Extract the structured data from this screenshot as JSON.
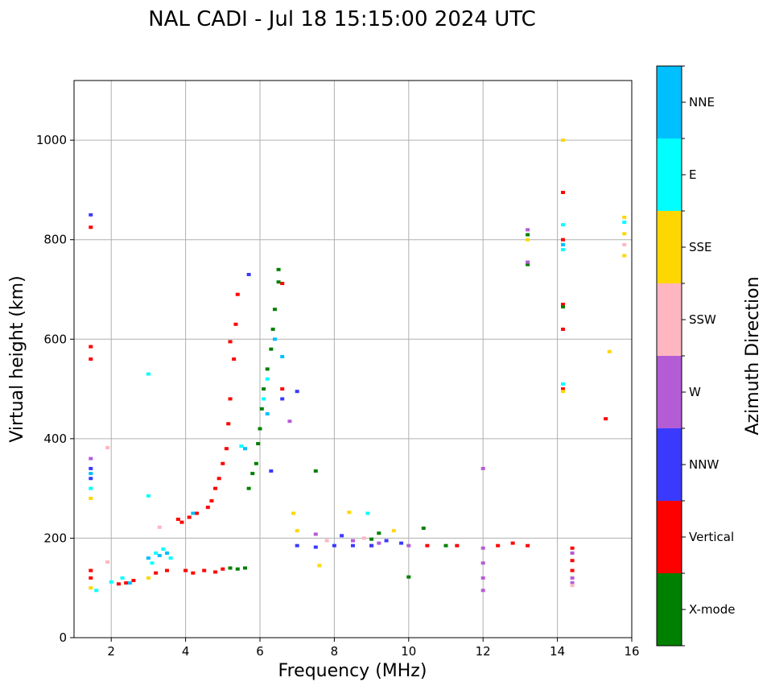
{
  "chart_data": {
    "type": "scatter",
    "title": "NAL CADI - Jul 18 15:15:00 2024 UTC",
    "xlabel": "Frequency (MHz)",
    "ylabel": "Virtual height (km)",
    "xlim": [
      1,
      16
    ],
    "ylim": [
      0,
      1120
    ],
    "xticks": [
      2,
      4,
      6,
      8,
      10,
      12,
      14,
      16
    ],
    "yticks": [
      0,
      200,
      400,
      600,
      800,
      1000
    ],
    "grid": true,
    "colorbar": {
      "label": "Azimuth Direction",
      "categories": [
        {
          "name": "X-mode",
          "color": "#008000"
        },
        {
          "name": "Vertical",
          "color": "#ff0000"
        },
        {
          "name": "NNW",
          "color": "#3a3aff"
        },
        {
          "name": "W",
          "color": "#b45cd6"
        },
        {
          "name": "SSW",
          "color": "#ffb6c1"
        },
        {
          "name": "SSE",
          "color": "#ffd700"
        },
        {
          "name": "E",
          "color": "#00ffff"
        },
        {
          "name": "NNE",
          "color": "#00bfff"
        }
      ]
    },
    "series": [
      {
        "name": "Vertical",
        "points": [
          [
            1.45,
            120
          ],
          [
            1.45,
            135
          ],
          [
            1.45,
            585
          ],
          [
            1.45,
            560
          ],
          [
            1.45,
            825
          ],
          [
            2.2,
            108
          ],
          [
            2.4,
            110
          ],
          [
            2.6,
            115
          ],
          [
            3.2,
            130
          ],
          [
            3.5,
            135
          ],
          [
            3.8,
            238
          ],
          [
            3.9,
            232
          ],
          [
            4.0,
            135
          ],
          [
            4.1,
            242
          ],
          [
            4.2,
            130
          ],
          [
            4.3,
            250
          ],
          [
            4.5,
            135
          ],
          [
            4.6,
            262
          ],
          [
            4.7,
            275
          ],
          [
            4.8,
            132
          ],
          [
            4.8,
            300
          ],
          [
            4.9,
            320
          ],
          [
            5.0,
            350
          ],
          [
            5.0,
            138
          ],
          [
            5.1,
            380
          ],
          [
            5.15,
            430
          ],
          [
            5.2,
            480
          ],
          [
            5.2,
            595
          ],
          [
            5.3,
            560
          ],
          [
            5.35,
            630
          ],
          [
            5.4,
            690
          ],
          [
            6.6,
            500
          ],
          [
            6.6,
            712
          ],
          [
            9.0,
            185
          ],
          [
            10.5,
            185
          ],
          [
            11.3,
            185
          ],
          [
            12.4,
            185
          ],
          [
            12.8,
            190
          ],
          [
            13.2,
            185
          ],
          [
            14.15,
            895
          ],
          [
            14.15,
            800
          ],
          [
            14.15,
            670
          ],
          [
            14.15,
            620
          ],
          [
            14.15,
            500
          ],
          [
            14.4,
            180
          ],
          [
            14.4,
            155
          ],
          [
            14.4,
            135
          ],
          [
            15.3,
            440
          ]
        ]
      },
      {
        "name": "X-mode",
        "points": [
          [
            5.2,
            140
          ],
          [
            5.4,
            138
          ],
          [
            5.6,
            140
          ],
          [
            5.7,
            300
          ],
          [
            5.8,
            330
          ],
          [
            5.9,
            350
          ],
          [
            5.95,
            390
          ],
          [
            6.0,
            420
          ],
          [
            6.05,
            460
          ],
          [
            6.1,
            500
          ],
          [
            6.2,
            540
          ],
          [
            6.3,
            580
          ],
          [
            6.35,
            620
          ],
          [
            6.4,
            660
          ],
          [
            6.5,
            740
          ],
          [
            6.5,
            715
          ],
          [
            7.5,
            335
          ],
          [
            9.0,
            198
          ],
          [
            9.2,
            210
          ],
          [
            10.0,
            122
          ],
          [
            10.4,
            220
          ],
          [
            11.0,
            185
          ],
          [
            13.2,
            810
          ],
          [
            13.2,
            750
          ],
          [
            14.15,
            665
          ]
        ]
      },
      {
        "name": "NNW",
        "points": [
          [
            1.45,
            850
          ],
          [
            1.45,
            340
          ],
          [
            1.45,
            320
          ],
          [
            5.7,
            730
          ],
          [
            6.3,
            335
          ],
          [
            6.6,
            480
          ],
          [
            7.0,
            495
          ],
          [
            7.0,
            185
          ],
          [
            7.5,
            182
          ],
          [
            8.0,
            185
          ],
          [
            8.2,
            205
          ],
          [
            8.5,
            185
          ],
          [
            9.0,
            185
          ],
          [
            9.4,
            195
          ],
          [
            9.8,
            190
          ]
        ]
      },
      {
        "name": "W",
        "points": [
          [
            1.45,
            360
          ],
          [
            6.8,
            435
          ],
          [
            7.5,
            208
          ],
          [
            8.5,
            195
          ],
          [
            9.2,
            190
          ],
          [
            10.0,
            185
          ],
          [
            12.0,
            340
          ],
          [
            12.0,
            180
          ],
          [
            12.0,
            150
          ],
          [
            12.0,
            120
          ],
          [
            12.0,
            95
          ],
          [
            13.2,
            820
          ],
          [
            13.2,
            755
          ],
          [
            14.4,
            170
          ],
          [
            14.4,
            120
          ],
          [
            14.4,
            110
          ]
        ]
      },
      {
        "name": "SSW",
        "points": [
          [
            1.9,
            382
          ],
          [
            1.9,
            152
          ],
          [
            3.3,
            222
          ],
          [
            7.8,
            195
          ],
          [
            8.8,
            200
          ],
          [
            14.4,
            105
          ],
          [
            15.8,
            790
          ]
        ]
      },
      {
        "name": "SSE",
        "points": [
          [
            1.45,
            280
          ],
          [
            1.45,
            100
          ],
          [
            3.0,
            120
          ],
          [
            6.9,
            250
          ],
          [
            7.0,
            215
          ],
          [
            7.6,
            145
          ],
          [
            8.4,
            252
          ],
          [
            9.6,
            215
          ],
          [
            13.2,
            800
          ],
          [
            14.15,
            1000
          ],
          [
            14.15,
            495
          ],
          [
            15.4,
            575
          ],
          [
            15.8,
            845
          ],
          [
            15.8,
            812
          ],
          [
            15.8,
            768
          ]
        ]
      },
      {
        "name": "E",
        "points": [
          [
            1.45,
            300
          ],
          [
            1.6,
            95
          ],
          [
            2.0,
            112
          ],
          [
            2.3,
            120
          ],
          [
            3.0,
            530
          ],
          [
            3.0,
            285
          ],
          [
            3.1,
            150
          ],
          [
            3.2,
            170
          ],
          [
            3.4,
            178
          ],
          [
            3.6,
            160
          ],
          [
            5.5,
            385
          ],
          [
            6.1,
            480
          ],
          [
            6.2,
            520
          ],
          [
            8.9,
            250
          ],
          [
            14.15,
            830
          ],
          [
            14.15,
            780
          ],
          [
            14.15,
            510
          ],
          [
            15.8,
            835
          ]
        ]
      },
      {
        "name": "NNE",
        "points": [
          [
            1.45,
            330
          ],
          [
            2.5,
            110
          ],
          [
            3.0,
            160
          ],
          [
            3.3,
            165
          ],
          [
            3.5,
            170
          ],
          [
            4.2,
            250
          ],
          [
            5.6,
            380
          ],
          [
            6.2,
            450
          ],
          [
            6.4,
            600
          ],
          [
            6.6,
            565
          ],
          [
            14.15,
            790
          ]
        ]
      }
    ]
  }
}
